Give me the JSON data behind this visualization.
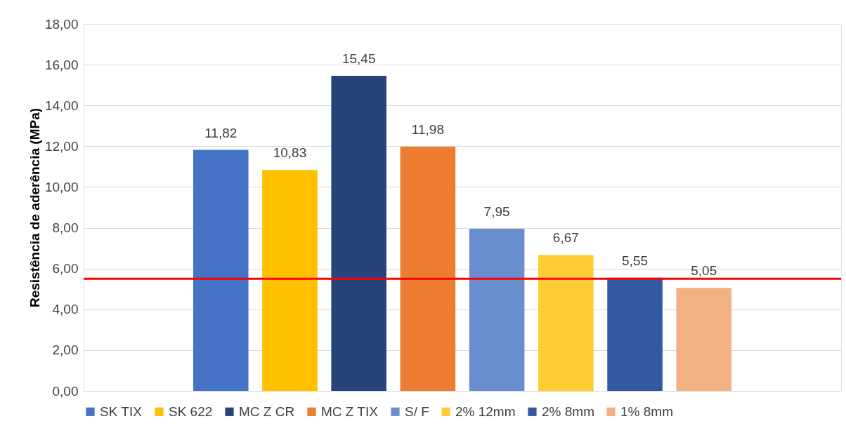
{
  "chart_data": {
    "type": "bar",
    "ylabel": "Resistência de aderência (MPa)",
    "categories": [
      null
    ],
    "series": [
      {
        "name": "SK TIX",
        "color": "#4472c4",
        "values": [
          11.82
        ],
        "value_labels": [
          "11,82"
        ]
      },
      {
        "name": "SK 622",
        "color": "#ffc000",
        "values": [
          10.83
        ],
        "value_labels": [
          "10,83"
        ]
      },
      {
        "name": "MC Z CR",
        "color": "#264478",
        "values": [
          15.45
        ],
        "value_labels": [
          "15,45"
        ]
      },
      {
        "name": "MC Z TIX",
        "color": "#ed7d31",
        "values": [
          11.98
        ],
        "value_labels": [
          "11,98"
        ]
      },
      {
        "name": "S/ F",
        "color": "#698ed0",
        "values": [
          7.95
        ],
        "value_labels": [
          "7,95"
        ]
      },
      {
        "name": "2% 12mm",
        "color": "#ffcd33",
        "values": [
          6.67
        ],
        "value_labels": [
          "6,67"
        ]
      },
      {
        "name": "2% 8mm",
        "color": "#335aa1",
        "values": [
          5.55
        ],
        "value_labels": [
          "5,55"
        ]
      },
      {
        "name": "1% 8mm",
        "color": "#f1b183",
        "values": [
          5.05
        ],
        "value_labels": [
          "5,05"
        ]
      }
    ],
    "ylim": [
      0,
      18
    ],
    "yticks": [
      {
        "value": 0,
        "label": "0,00"
      },
      {
        "value": 2,
        "label": "2,00"
      },
      {
        "value": 4,
        "label": "4,00"
      },
      {
        "value": 6,
        "label": "6,00"
      },
      {
        "value": 8,
        "label": "8,00"
      },
      {
        "value": 10,
        "label": "10,00"
      },
      {
        "value": 12,
        "label": "12,00"
      },
      {
        "value": 14,
        "label": "14,00"
      },
      {
        "value": 16,
        "label": "16,00"
      },
      {
        "value": 18,
        "label": "18,00"
      }
    ],
    "ref_lines": [
      {
        "axis": "y",
        "value": 5.5,
        "color": "#ff0000"
      }
    ],
    "grid": "y",
    "legend": "bottom"
  }
}
